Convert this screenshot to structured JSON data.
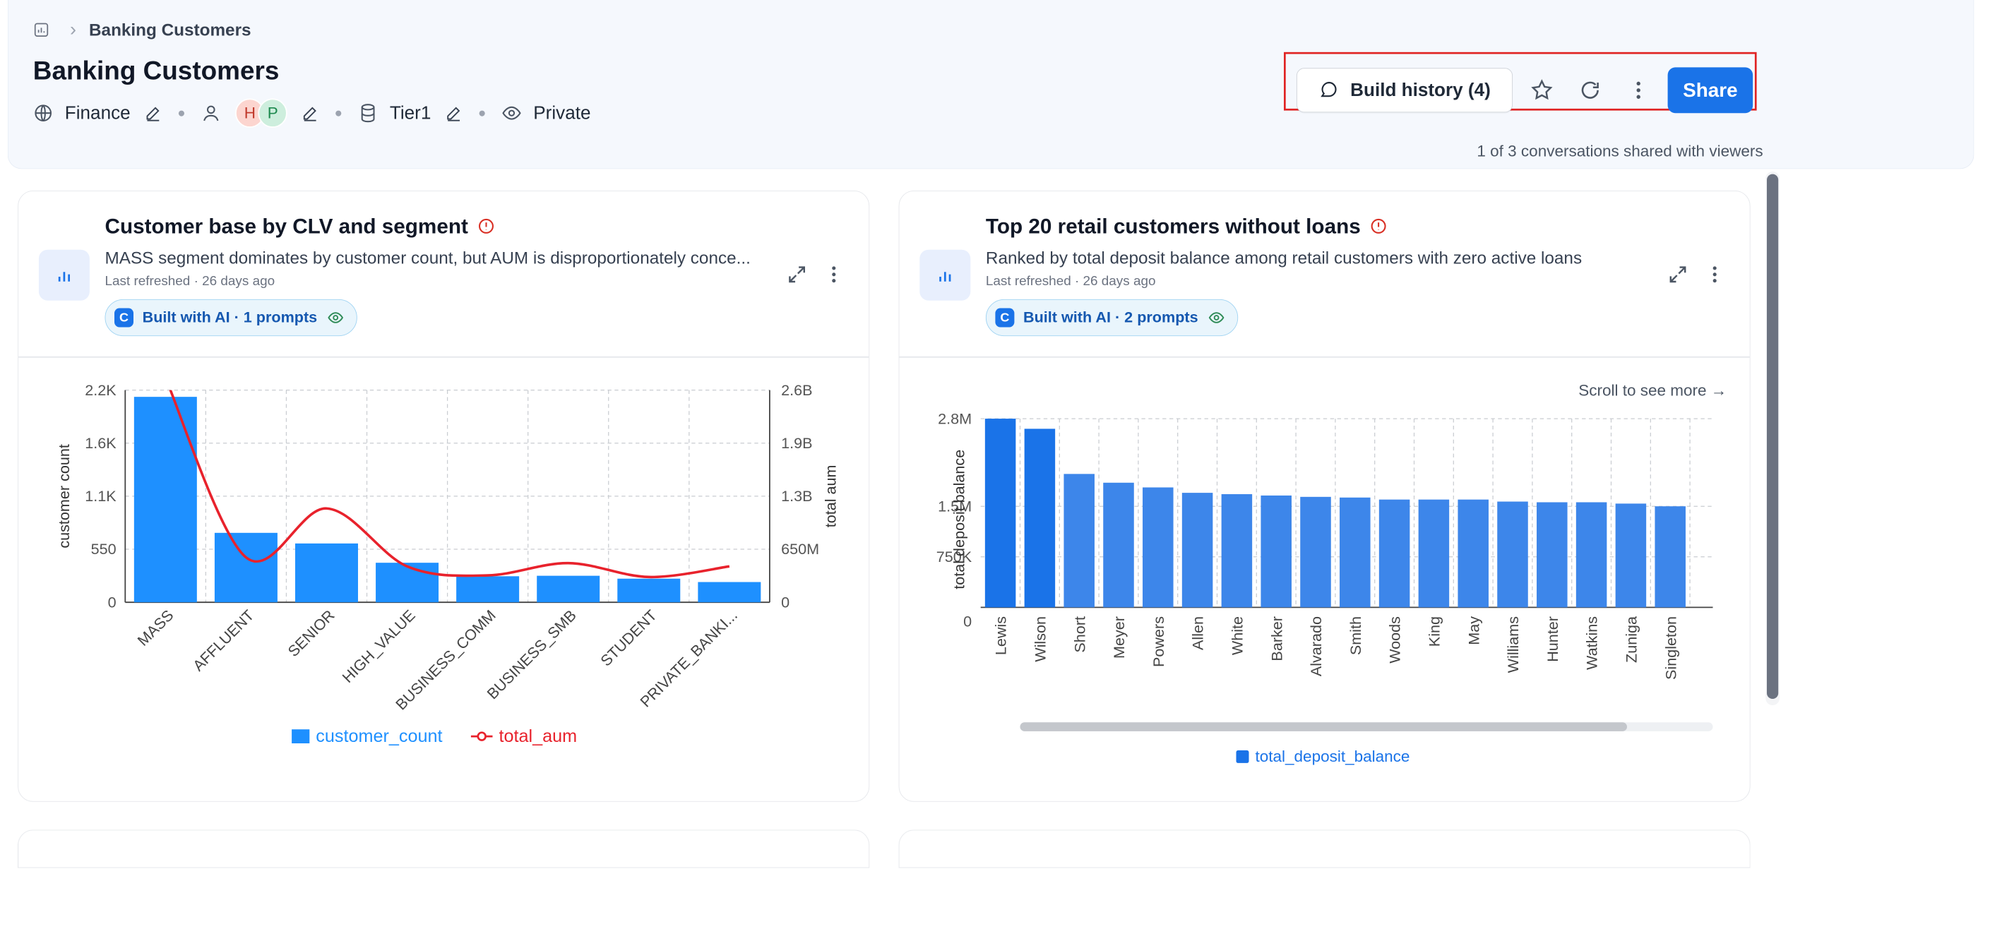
{
  "breadcrumb": {
    "current": "Banking Customers"
  },
  "page": {
    "title": "Banking Customers"
  },
  "meta": {
    "domain": "Finance",
    "owners": [
      "H",
      "P"
    ],
    "tier": "Tier1",
    "visibility": "Private"
  },
  "actions": {
    "build_history": "Build history (4)",
    "share": "Share",
    "shared_note": "1 of 3 conversations shared with viewers"
  },
  "cards": [
    {
      "title": "Customer base by CLV and segment",
      "description": "MASS segment dominates by customer count, but AUM is disproportionately conce...",
      "refreshed": "Last refreshed · 26 days ago",
      "badge": "Built with AI · 1 prompts"
    },
    {
      "title": "Top 20 retail customers without loans",
      "description": "Ranked by total deposit balance among retail customers with zero active loans",
      "refreshed": "Last refreshed · 26 days ago",
      "badge": "Built with AI · 2 prompts",
      "scroll_hint": "Scroll to see more →"
    }
  ],
  "colors": {
    "accent": "#1a73e8",
    "bar": "#1e90ff",
    "line": "#e8222c",
    "highlight": "#e02424"
  },
  "chart_data": [
    {
      "type": "bar",
      "title": "Customer base by CLV and segment",
      "categories": [
        "MASS",
        "AFFLUENT",
        "SENIOR",
        "HIGH_VALUE",
        "BUSINESS_COMM",
        "BUSINESS_SMB",
        "STUDENT",
        "PRIVATE_BANKI..."
      ],
      "series": [
        {
          "name": "customer_count",
          "type": "bar",
          "axis": "left",
          "values": [
            2130,
            720,
            610,
            410,
            270,
            275,
            245,
            210
          ]
        },
        {
          "name": "total_aum",
          "type": "line",
          "axis": "right",
          "values": [
            2750000000,
            550000000,
            1150000000,
            440000000,
            330000000,
            480000000,
            310000000,
            440000000
          ]
        }
      ],
      "ylabel": "customer count",
      "y2label": "total aum",
      "ylim": [
        0,
        2200
      ],
      "y2lim": [
        0,
        2600000000
      ],
      "yticks": [
        "0",
        "550",
        "1.1K",
        "1.6K",
        "2.2K"
      ],
      "y2ticks": [
        "0",
        "650M",
        "1.3B",
        "1.9B",
        "2.6B"
      ],
      "grid": true,
      "legend": "bottom-center"
    },
    {
      "type": "bar",
      "title": "Top 20 retail customers without loans",
      "categories": [
        "Lewis",
        "Wilson",
        "Short",
        "Meyer",
        "Powers",
        "Allen",
        "White",
        "Barker",
        "Alvarado",
        "Smith",
        "Woods",
        "King",
        "May",
        "Williams",
        "Hunter",
        "Watkins",
        "Zuniga",
        "Singleton"
      ],
      "series": [
        {
          "name": "total_deposit_balance",
          "values": [
            2800000,
            2650000,
            1980000,
            1850000,
            1780000,
            1700000,
            1680000,
            1660000,
            1640000,
            1630000,
            1600000,
            1600000,
            1600000,
            1570000,
            1560000,
            1560000,
            1540000,
            1500000
          ]
        }
      ],
      "ylabel": "total deposit balance",
      "ylim": [
        0,
        2800000
      ],
      "yticks": [
        "0",
        "750K",
        "1.5M",
        "2.8M"
      ],
      "grid": true,
      "legend": "bottom-center"
    }
  ]
}
